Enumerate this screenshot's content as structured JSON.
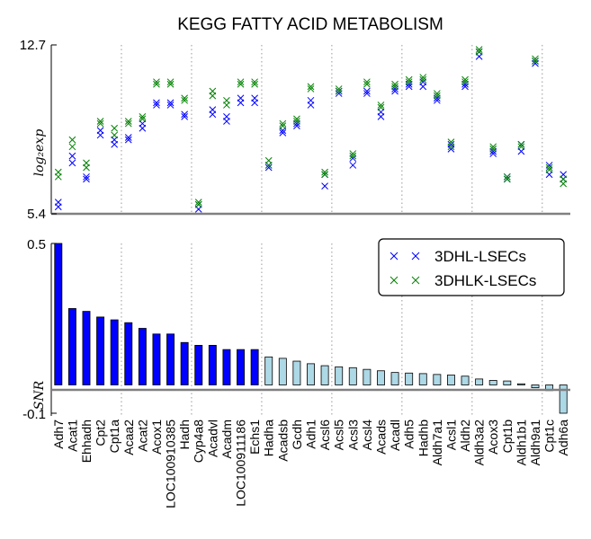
{
  "chart_data": [
    {
      "type": "scatter",
      "title": "KEGG FATTY ACID METABOLISM",
      "ylabel": "log₂exp",
      "ylim": [
        5.4,
        12.7
      ],
      "ytick_labels": [
        "5.4",
        "12.7"
      ],
      "categories": [
        "Adh7",
        "Acat1",
        "Ehhadh",
        "Cpt2",
        "Cpt1a",
        "Acaa2",
        "Acat2",
        "Acox1",
        "LOC100910385",
        "Hadh",
        "Cyp4a8",
        "Acadvl",
        "Acadm",
        "LOC100911186",
        "Echs1",
        "Hadha",
        "Acadsb",
        "Gcdh",
        "Adh1",
        "Acsl6",
        "Acsl5",
        "Acsl3",
        "Acsl4",
        "Acads",
        "Acadl",
        "Adh5",
        "Hadhb",
        "Aldh7a1",
        "Acsl1",
        "Aldh2",
        "Aldh3a2",
        "Acox3",
        "Cpt1b",
        "Aldh1b1",
        "Aldh9a1",
        "Cpt1c",
        "Adh6a"
      ],
      "series": [
        {
          "name": "3DHL-LSECs",
          "color": "#0000ff",
          "values": [
            [
              5.7,
              5.9
            ],
            [
              7.6,
              7.9
            ],
            [
              6.9,
              7.0
            ],
            [
              8.8,
              9.0
            ],
            [
              8.4,
              8.6
            ],
            [
              8.6,
              8.7
            ],
            [
              9.1,
              9.3
            ],
            [
              10.1,
              10.2
            ],
            [
              10.1,
              10.2
            ],
            [
              9.6,
              9.7
            ],
            [
              5.6,
              5.8
            ],
            [
              9.7,
              9.9
            ],
            [
              9.4,
              9.6
            ],
            [
              10.2,
              10.4
            ],
            [
              10.2,
              10.4
            ],
            [
              7.4,
              7.5
            ],
            [
              8.9,
              9.0
            ],
            [
              9.2,
              9.3
            ],
            [
              10.1,
              10.3
            ],
            [
              6.6,
              7.1
            ],
            [
              10.6,
              10.7
            ],
            [
              7.5,
              7.8
            ],
            [
              10.6,
              10.7
            ],
            [
              9.6,
              9.8
            ],
            [
              10.7,
              10.8
            ],
            [
              10.9,
              11.0
            ],
            [
              10.9,
              11.1
            ],
            [
              10.3,
              10.4
            ],
            [
              8.2,
              8.4
            ],
            [
              10.9,
              11.0
            ],
            [
              12.2,
              12.4
            ],
            [
              8.0,
              8.1
            ],
            [
              6.9,
              7.0
            ],
            [
              8.1,
              8.4
            ],
            [
              11.9,
              12.0
            ],
            [
              7.1,
              7.5
            ],
            [
              6.9,
              7.1
            ]
          ]
        },
        {
          "name": "3DHLK-LSECs",
          "color": "#008000",
          "values": [
            [
              7.0,
              7.2
            ],
            [
              8.3,
              8.6
            ],
            [
              7.4,
              7.6
            ],
            [
              9.3,
              9.4
            ],
            [
              8.8,
              9.1
            ],
            [
              9.3,
              9.4
            ],
            [
              9.5,
              9.6
            ],
            [
              11.0,
              11.1
            ],
            [
              11.0,
              11.1
            ],
            [
              10.3,
              10.4
            ],
            [
              5.8,
              5.9
            ],
            [
              10.5,
              10.7
            ],
            [
              10.1,
              10.3
            ],
            [
              11.0,
              11.1
            ],
            [
              11.0,
              11.1
            ],
            [
              7.5,
              7.7
            ],
            [
              9.2,
              9.3
            ],
            [
              9.4,
              9.5
            ],
            [
              10.8,
              10.9
            ],
            [
              7.1,
              7.2
            ],
            [
              10.7,
              10.8
            ],
            [
              7.9,
              8.0
            ],
            [
              11.0,
              11.1
            ],
            [
              10.0,
              10.1
            ],
            [
              10.9,
              11.0
            ],
            [
              11.1,
              11.2
            ],
            [
              11.2,
              11.3
            ],
            [
              10.5,
              10.6
            ],
            [
              8.3,
              8.5
            ],
            [
              11.1,
              11.2
            ],
            [
              12.4,
              12.5
            ],
            [
              8.2,
              8.3
            ],
            [
              6.9,
              7.0
            ],
            [
              8.3,
              8.4
            ],
            [
              12.0,
              12.1
            ],
            [
              7.3,
              7.4
            ],
            [
              6.7,
              6.9
            ]
          ]
        }
      ],
      "grid": "vertical dotted lines at category groups"
    },
    {
      "type": "bar",
      "ylabel": "SNR",
      "ylim": [
        -0.1,
        0.5
      ],
      "ytick_labels": [
        "0.5",
        "-0.1"
      ],
      "categories": [
        "Adh7",
        "Acat1",
        "Ehhadh",
        "Cpt2",
        "Cpt1a",
        "Acaa2",
        "Acat2",
        "Acox1",
        "LOC100910385",
        "Hadh",
        "Cyp4a8",
        "Acadvl",
        "Acadm",
        "LOC100911186",
        "Echs1",
        "Hadha",
        "Acadsb",
        "Gcdh",
        "Adh1",
        "Acsl6",
        "Acsl5",
        "Acsl3",
        "Acsl4",
        "Acads",
        "Acadl",
        "Adh5",
        "Hadhb",
        "Aldh7a1",
        "Acsl1",
        "Aldh2",
        "Aldh3a2",
        "Acox3",
        "Cpt1b",
        "Aldh1b1",
        "Aldh9a1",
        "Cpt1c",
        "Adh6a"
      ],
      "values": [
        0.5,
        0.27,
        0.26,
        0.24,
        0.23,
        0.22,
        0.2,
        0.18,
        0.18,
        0.15,
        0.14,
        0.14,
        0.125,
        0.125,
        0.125,
        0.099,
        0.094,
        0.084,
        0.075,
        0.068,
        0.064,
        0.061,
        0.055,
        0.05,
        0.044,
        0.042,
        0.04,
        0.037,
        0.035,
        0.031,
        0.021,
        0.016,
        0.014,
        0.004,
        -0.01,
        -0.02,
        -0.1
      ],
      "colors": {
        "positive_high": "#0000ff",
        "positive_low": "#add8e6"
      },
      "legend": {
        "placement": "top-right",
        "entries": [
          "3DHL-LSECs",
          "3DHLK-LSECs"
        ]
      }
    }
  ]
}
